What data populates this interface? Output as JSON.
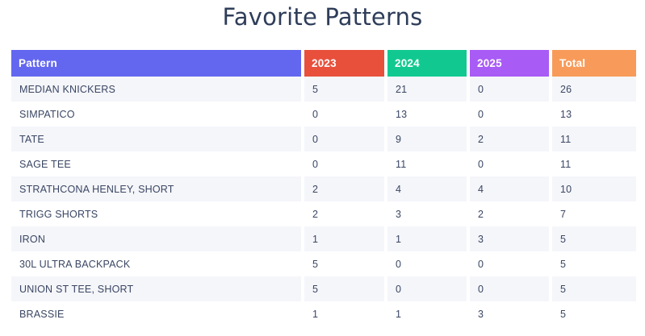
{
  "title": "Favorite Patterns",
  "colors": {
    "pattern_header": "#6367F0",
    "col_2023": "#E8503C",
    "col_2024": "#11C990",
    "col_2025": "#A85BF5",
    "col_total": "#F89B5A",
    "row_stripe": "#F5F6FA",
    "row_text": "#3A4663",
    "title_text": "#2E3D59",
    "header_text": "#FFFFFF"
  },
  "table": {
    "columns": [
      {
        "key": "pattern",
        "label": "Pattern",
        "color": "#6367F0"
      },
      {
        "key": "y2023",
        "label": "2023",
        "color": "#E8503C"
      },
      {
        "key": "y2024",
        "label": "2024",
        "color": "#11C990"
      },
      {
        "key": "y2025",
        "label": "2025",
        "color": "#A85BF5"
      },
      {
        "key": "total",
        "label": "Total",
        "color": "#F89B5A"
      }
    ],
    "rows": [
      {
        "pattern": "MEDIAN KNICKERS",
        "y2023": "5",
        "y2024": "21",
        "y2025": "0",
        "total": "26"
      },
      {
        "pattern": "SIMPATICO",
        "y2023": "0",
        "y2024": "13",
        "y2025": "0",
        "total": "13"
      },
      {
        "pattern": "TATE",
        "y2023": "0",
        "y2024": "9",
        "y2025": "2",
        "total": "11"
      },
      {
        "pattern": "SAGE TEE",
        "y2023": "0",
        "y2024": "11",
        "y2025": "0",
        "total": "11"
      },
      {
        "pattern": "STRATHCONA HENLEY, SHORT",
        "y2023": "2",
        "y2024": "4",
        "y2025": "4",
        "total": "10"
      },
      {
        "pattern": "TRIGG SHORTS",
        "y2023": "2",
        "y2024": "3",
        "y2025": "2",
        "total": "7"
      },
      {
        "pattern": "IRON",
        "y2023": "1",
        "y2024": "1",
        "y2025": "3",
        "total": "5"
      },
      {
        "pattern": "30L ULTRA BACKPACK",
        "y2023": "5",
        "y2024": "0",
        "y2025": "0",
        "total": "5"
      },
      {
        "pattern": "UNION ST TEE, SHORT",
        "y2023": "5",
        "y2024": "0",
        "y2025": "0",
        "total": "5"
      },
      {
        "pattern": "BRASSIE",
        "y2023": "1",
        "y2024": "1",
        "y2025": "3",
        "total": "5"
      }
    ]
  },
  "chart_data": {
    "type": "table",
    "title": "Favorite Patterns",
    "columns": [
      "Pattern",
      "2023",
      "2024",
      "2025",
      "Total"
    ],
    "rows": [
      [
        "MEDIAN KNICKERS",
        5,
        21,
        0,
        26
      ],
      [
        "SIMPATICO",
        0,
        13,
        0,
        13
      ],
      [
        "TATE",
        0,
        9,
        2,
        11
      ],
      [
        "SAGE TEE",
        0,
        11,
        0,
        11
      ],
      [
        "STRATHCONA HENLEY, SHORT",
        2,
        4,
        4,
        10
      ],
      [
        "TRIGG SHORTS",
        2,
        3,
        2,
        7
      ],
      [
        "IRON",
        1,
        1,
        3,
        5
      ],
      [
        "30L ULTRA BACKPACK",
        5,
        0,
        0,
        5
      ],
      [
        "UNION ST TEE, SHORT",
        5,
        0,
        0,
        5
      ],
      [
        "BRASSIE",
        1,
        1,
        3,
        5
      ]
    ],
    "layout": {
      "striped_rows": "odd",
      "header_colored": true,
      "grid": false,
      "legend": "none"
    }
  }
}
